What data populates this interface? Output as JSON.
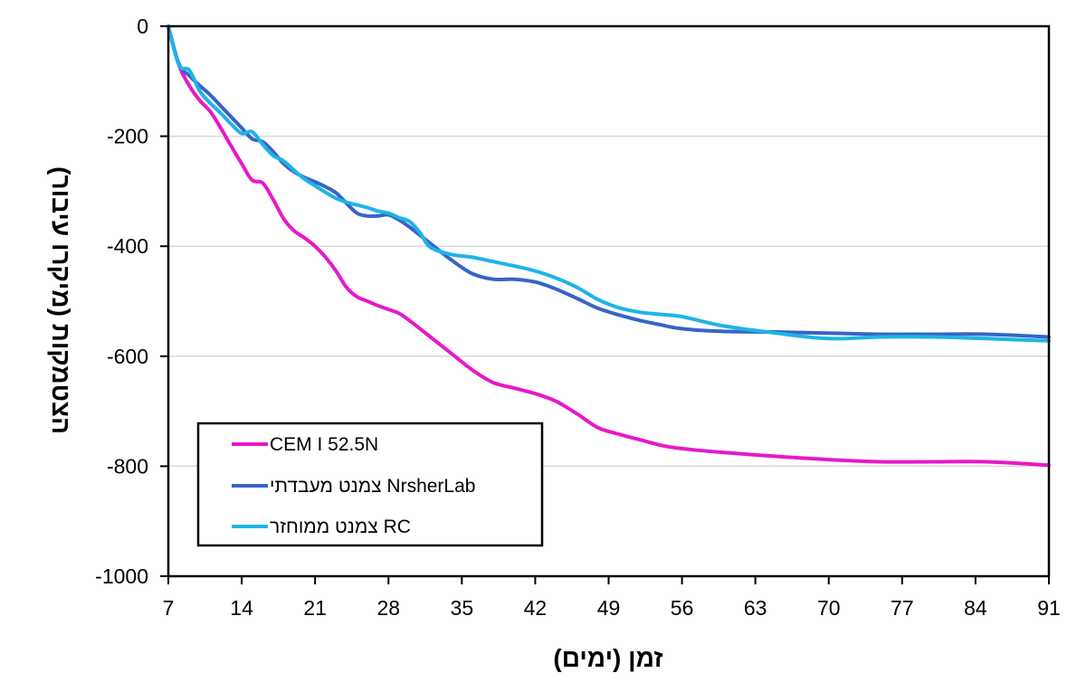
{
  "chart_data": {
    "type": "line",
    "xlabel": "זמן (ימים)",
    "ylabel": "הצטמקות (מיקרו עיבור)",
    "xlim": [
      7,
      91
    ],
    "ylim": [
      -1000,
      0
    ],
    "xticks": [
      7,
      14,
      21,
      28,
      35,
      42,
      49,
      56,
      63,
      70,
      77,
      84,
      91
    ],
    "yticks": [
      0,
      -200,
      -400,
      -600,
      -800,
      -1000
    ],
    "xtick_labels": [
      "7",
      "14",
      "21",
      "28",
      "35",
      "42",
      "49",
      "56",
      "63",
      "70",
      "77",
      "84",
      "91"
    ],
    "ytick_labels": [
      "0",
      "-200",
      "-400",
      "-600",
      "-800",
      "-1000"
    ],
    "grid": "horizontal",
    "legend_position": "bottom-left",
    "series": [
      {
        "name": "CEM I 52.5N",
        "color": "#E619C8",
        "x": [
          7,
          8,
          9,
          10,
          11,
          12,
          13,
          14,
          15,
          16,
          17,
          18,
          19,
          20,
          21,
          22,
          23,
          24,
          25,
          26,
          27,
          28,
          29,
          30,
          32,
          34,
          36,
          38,
          40,
          42,
          44,
          46,
          48,
          50,
          52,
          54,
          56,
          60,
          65,
          70,
          75,
          80,
          85,
          91
        ],
        "y": [
          0,
          -70,
          -108,
          -135,
          -155,
          -185,
          -218,
          -250,
          -280,
          -285,
          -315,
          -350,
          -372,
          -385,
          -400,
          -420,
          -445,
          -475,
          -492,
          -500,
          -508,
          -515,
          -522,
          -535,
          -565,
          -595,
          -625,
          -648,
          -658,
          -668,
          -682,
          -705,
          -730,
          -742,
          -752,
          -762,
          -768,
          -775,
          -782,
          -788,
          -792,
          -792,
          -792,
          -798
        ]
      },
      {
        "name": "צמנט מעבדתי  NrsherLab",
        "color": "#3764C8",
        "x": [
          7,
          8,
          9,
          10,
          11,
          12,
          13,
          14,
          15,
          16,
          17,
          18,
          19,
          20,
          21,
          22,
          23,
          24,
          25,
          26,
          27,
          28,
          29,
          30,
          32,
          34,
          36,
          38,
          40,
          42,
          44,
          46,
          48,
          50,
          52,
          54,
          56,
          60,
          65,
          70,
          75,
          80,
          85,
          91
        ],
        "y": [
          0,
          -68,
          -90,
          -108,
          -125,
          -145,
          -165,
          -185,
          -205,
          -210,
          -228,
          -250,
          -265,
          -275,
          -283,
          -292,
          -303,
          -322,
          -340,
          -345,
          -345,
          -343,
          -352,
          -365,
          -395,
          -425,
          -450,
          -460,
          -460,
          -465,
          -478,
          -495,
          -513,
          -525,
          -535,
          -543,
          -550,
          -555,
          -556,
          -558,
          -560,
          -560,
          -560,
          -565
        ]
      },
      {
        "name": "צמנט ממוחזר RC",
        "color": "#1EB4E6",
        "x": [
          7,
          8,
          9,
          10,
          11,
          12,
          13,
          14,
          15,
          16,
          17,
          18,
          19,
          20,
          21,
          22,
          23,
          24,
          25,
          26,
          27,
          28,
          29,
          30,
          31,
          32,
          34,
          36,
          38,
          40,
          42,
          44,
          46,
          48,
          50,
          52,
          54,
          56,
          60,
          65,
          70,
          75,
          80,
          85,
          91
        ],
        "y": [
          0,
          -70,
          -80,
          -118,
          -140,
          -158,
          -178,
          -195,
          -192,
          -215,
          -235,
          -245,
          -262,
          -278,
          -290,
          -302,
          -313,
          -320,
          -325,
          -330,
          -336,
          -340,
          -348,
          -355,
          -375,
          -402,
          -415,
          -420,
          -428,
          -436,
          -445,
          -458,
          -475,
          -497,
          -512,
          -520,
          -524,
          -528,
          -545,
          -558,
          -568,
          -565,
          -565,
          -568,
          -572
        ]
      }
    ]
  }
}
